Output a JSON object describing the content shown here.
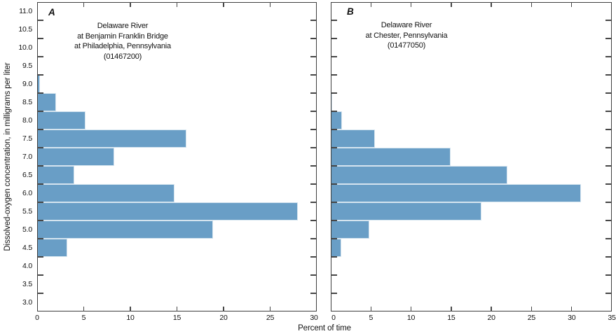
{
  "figure": {
    "x_axis_title": "Percent of time",
    "y_axis_title": "Dissolved-oxygen concentration, in milligrams per liter",
    "bar_color": "#699ec6",
    "frame_color": "#3e3e3e"
  },
  "chart_data": [
    {
      "type": "bar",
      "orientation": "horizontal",
      "panel": "A",
      "panel_letter": "A",
      "title": "Delaware River\nat Benjamin Franklin Bridge\nat Philadelphia, Pennsylvania\n(01467200)",
      "xlabel": "Percent of time",
      "ylabel": "Dissolved-oxygen concentration, in milligrams per liter",
      "xlim": [
        0,
        30
      ],
      "xticks": [
        0,
        5,
        10,
        15,
        20,
        25,
        30
      ],
      "ylim": [
        2.75,
        11.25
      ],
      "yticks": [
        3.0,
        3.5,
        4.0,
        4.5,
        5.0,
        5.5,
        6.0,
        6.5,
        7.0,
        7.5,
        8.0,
        8.5,
        9.0,
        9.5,
        10.0,
        10.5,
        11.0
      ],
      "bin_width": 0.5,
      "grid": false,
      "categories": [
        9.0,
        8.5,
        8.0,
        7.5,
        7.0,
        6.5,
        6.0,
        5.5,
        5.0,
        4.5
      ],
      "values": [
        0.3,
        2.0,
        5.2,
        16.0,
        8.3,
        4.0,
        14.7,
        28.0,
        18.9,
        3.2
      ],
      "bar_color": "#699ec6"
    },
    {
      "type": "bar",
      "orientation": "horizontal",
      "panel": "B",
      "panel_letter": "B",
      "title": "Delaware River\nat Chester, Pennsylvania\n(01477050)",
      "xlabel": "Percent of time",
      "ylabel": "Dissolved-oxygen concentration, in milligrams per liter",
      "xlim": [
        0,
        35
      ],
      "xticks": [
        0,
        5,
        10,
        15,
        20,
        25,
        30,
        35
      ],
      "ylim": [
        2.75,
        11.25
      ],
      "yticks": [
        3.0,
        3.5,
        4.0,
        4.5,
        5.0,
        5.5,
        6.0,
        6.5,
        7.0,
        7.5,
        8.0,
        8.5,
        9.0,
        9.5,
        10.0,
        10.5,
        11.0
      ],
      "bin_width": 0.5,
      "grid": false,
      "categories": [
        8.5,
        8.0,
        7.5,
        7.0,
        6.5,
        6.0,
        5.5,
        5.0,
        4.5
      ],
      "values": [
        0.2,
        1.4,
        5.5,
        14.9,
        22.0,
        31.2,
        18.8,
        4.8,
        1.3
      ],
      "bar_color": "#699ec6"
    }
  ]
}
